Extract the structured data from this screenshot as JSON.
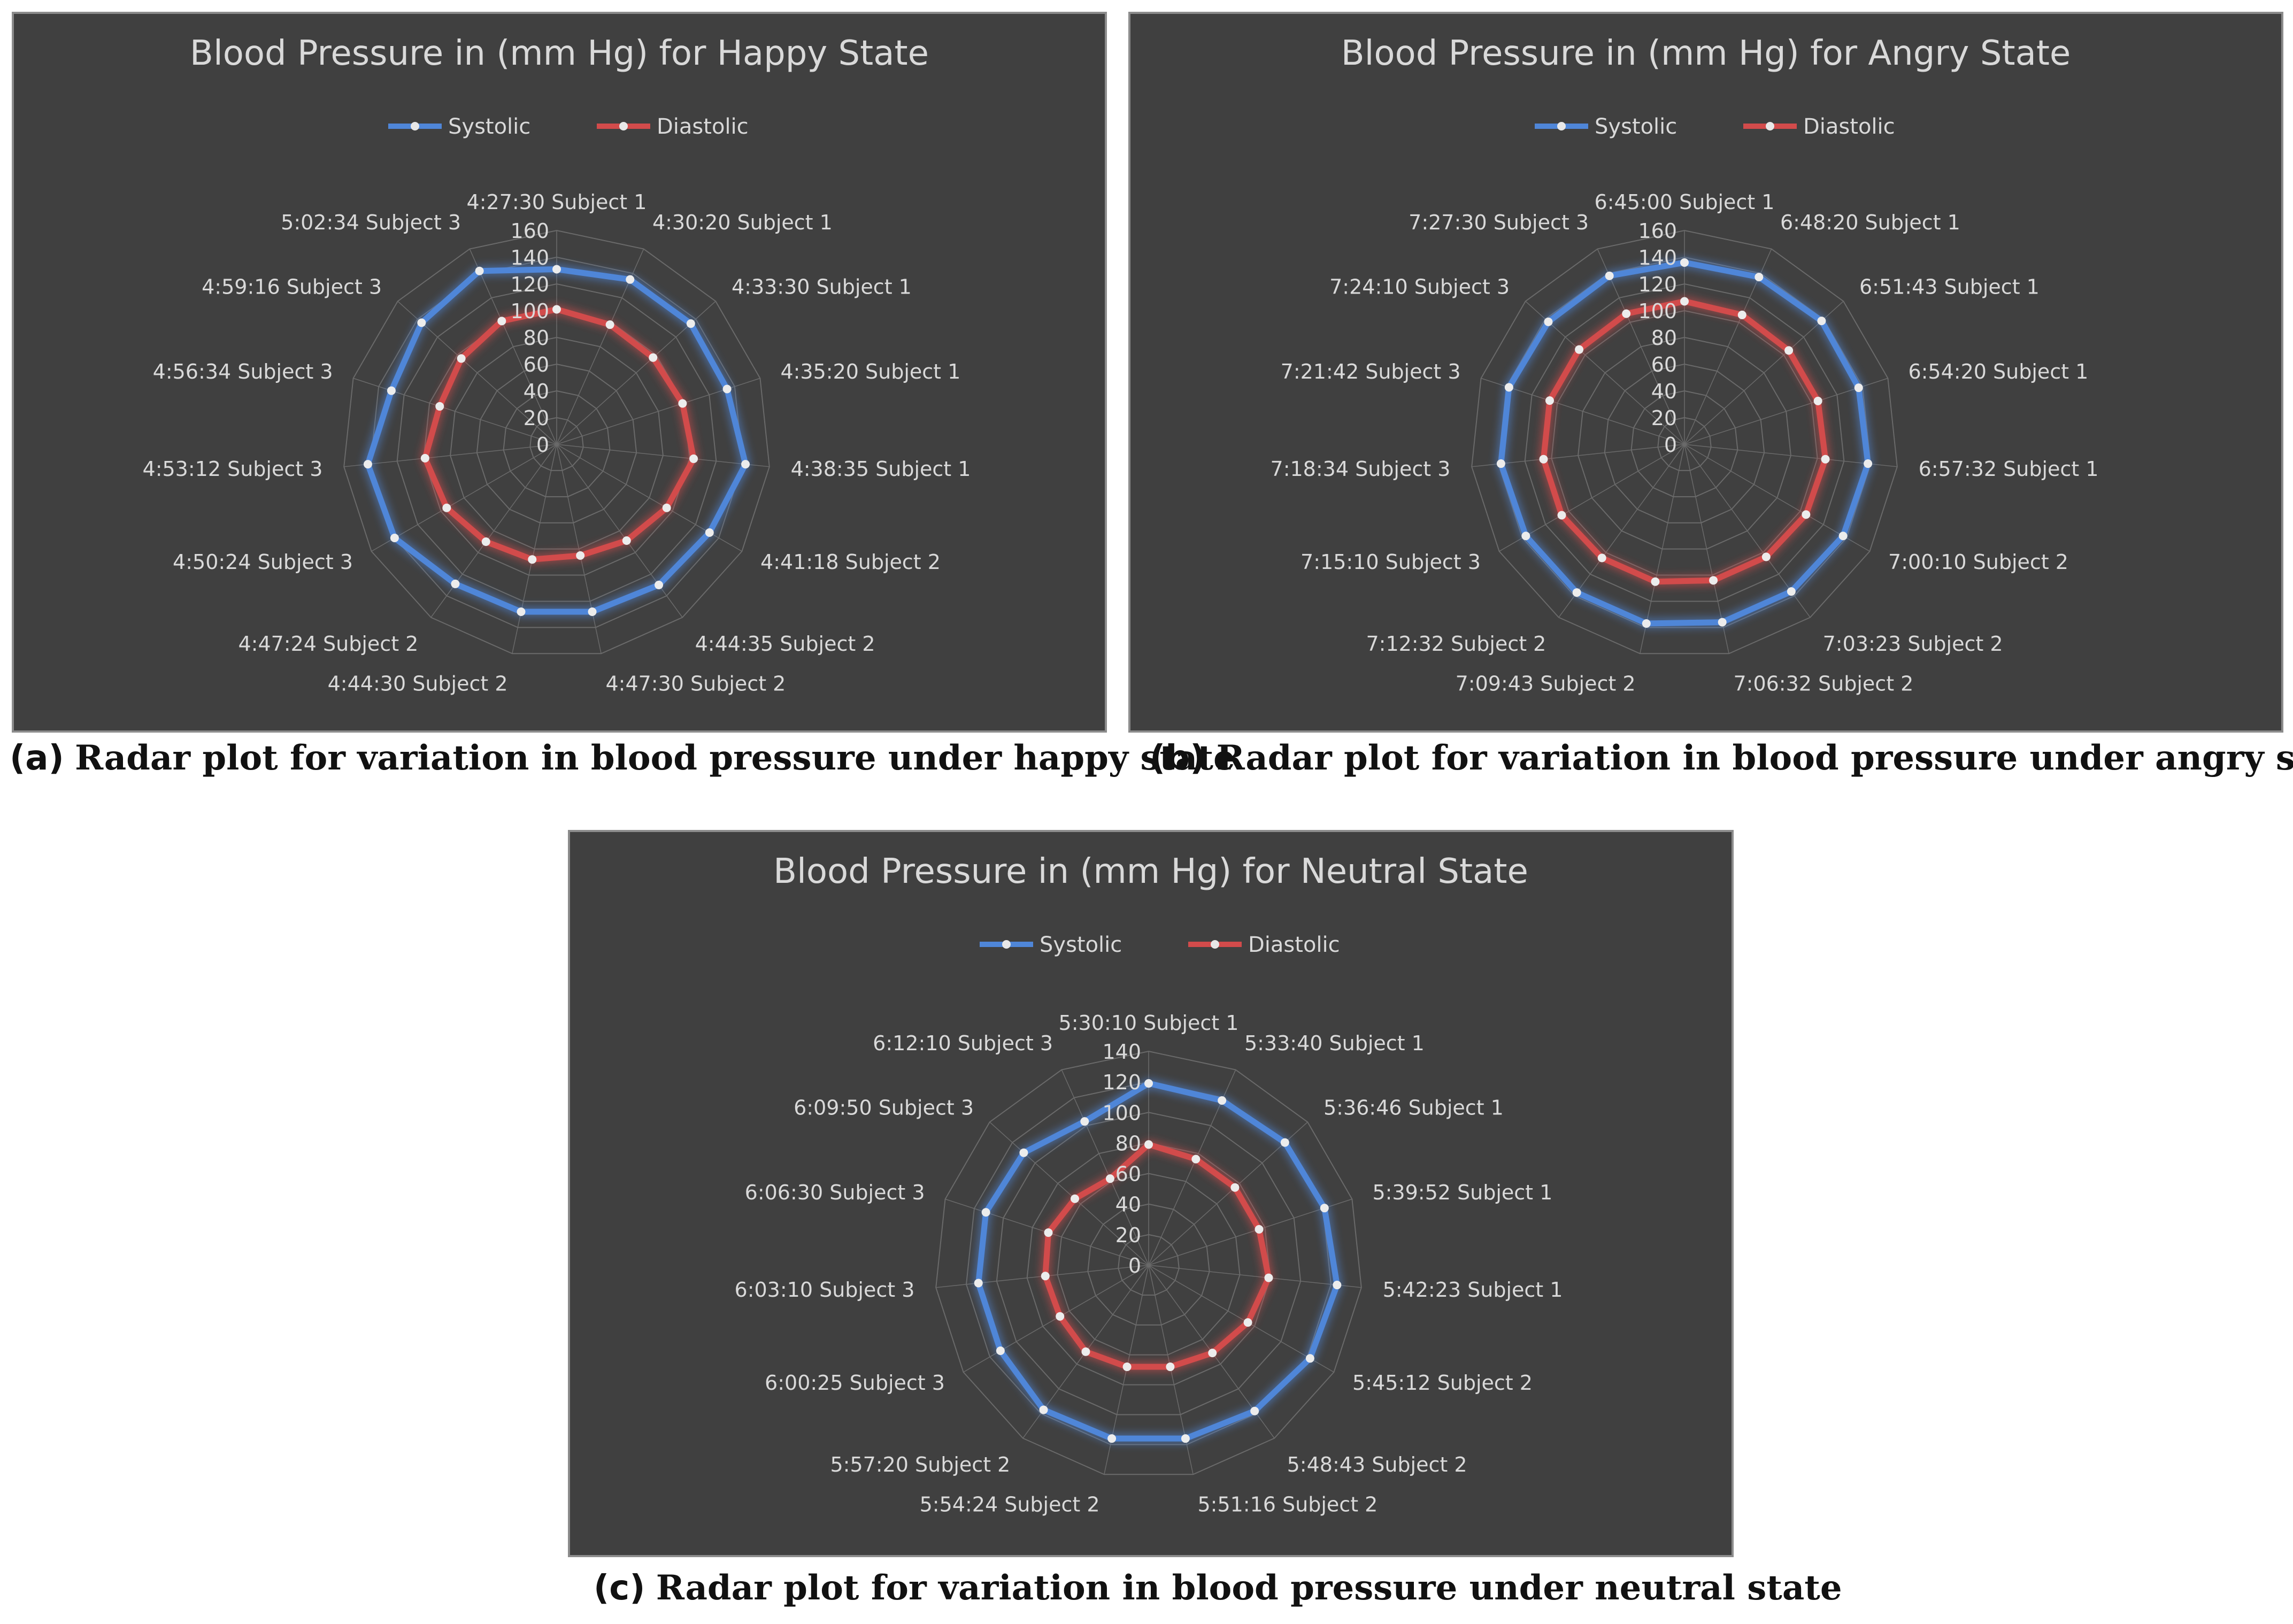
{
  "colors": {
    "systolic": "#4f86d8",
    "diastolic": "#d24b4b",
    "background": "#404040",
    "grid": "#6a6a6a",
    "text": "#d9d9d9"
  },
  "captions": [
    {
      "letter": "(a)",
      "text": "Radar plot for variation in blood pressure under happy state"
    },
    {
      "letter": "(b)",
      "text": "Radar plot for variation in blood pressure under angry state"
    },
    {
      "letter": "(c)",
      "text": "Radar plot for variation in blood pressure under neutral state"
    }
  ],
  "chart_data": [
    {
      "type": "radar",
      "title": "Blood Pressure in (mm Hg) for Happy State",
      "legend": [
        "Systolic",
        "Diastolic"
      ],
      "legend_position": "top",
      "axis_max": 160,
      "ticks": [
        "0",
        "20",
        "40",
        "60",
        "80",
        "100",
        "120",
        "140",
        "160"
      ],
      "categories": [
        "4:27:30 Subject 1",
        "4:30:20 Subject 1",
        "4:33:30 Subject 1",
        "4:35:20 Subject 1",
        "4:38:35 Subject 1",
        "4:41:18 Subject 2",
        "4:44:35 Subject 2",
        "4:47:30 Subject 2",
        "4:44:30 Subject 2",
        "4:47:24 Subject 2",
        "4:50:24 Subject 3",
        "4:53:12 Subject 3",
        "4:56:34 Subject 3",
        "4:59:16 Subject 3",
        "5:02:34 Subject 3"
      ],
      "series": [
        {
          "name": "Systolic",
          "values": [
            131,
            135,
            135,
            134,
            142,
            132,
            130,
            128,
            128,
            129,
            140,
            142,
            130,
            136,
            142
          ]
        },
        {
          "name": "Diastolic",
          "values": [
            101,
            98,
            97,
            99,
            103,
            95,
            89,
            85,
            88,
            90,
            95,
            99,
            92,
            96,
            101
          ]
        }
      ]
    },
    {
      "type": "radar",
      "title": "Blood Pressure in (mm Hg) for Angry State",
      "legend": [
        "Systolic",
        "Diastolic"
      ],
      "legend_position": "top",
      "axis_max": 160,
      "ticks": [
        "0",
        "20",
        "40",
        "60",
        "80",
        "100",
        "120",
        "140",
        "160"
      ],
      "categories": [
        "6:45:00 Subject 1",
        "6:48:20 Subject 1",
        "6:51:43 Subject 1",
        "6:54:20 Subject 1",
        "6:57:32 Subject 1",
        "7:00:10 Subject 2",
        "7:03:23 Subject 2",
        "7:06:32 Subject 2",
        "7:09:43 Subject 2",
        "7:12:32 Subject 2",
        "7:15:10 Subject 3",
        "7:18:34 Subject 3",
        "7:21:42 Subject 3",
        "7:24:10 Subject 3",
        "7:27:30 Subject 3"
      ],
      "series": [
        {
          "name": "Systolic",
          "values": [
            136,
            137,
            138,
            137,
            138,
            137,
            136,
            136,
            137,
            137,
            137,
            138,
            138,
            137,
            138
          ]
        },
        {
          "name": "Diastolic",
          "values": [
            107,
            106,
            105,
            105,
            106,
            105,
            104,
            104,
            105,
            105,
            106,
            106,
            106,
            106,
            107
          ]
        }
      ]
    },
    {
      "type": "radar",
      "title": "Blood Pressure in (mm Hg) for Neutral State",
      "legend": [
        "Systolic",
        "Diastolic"
      ],
      "legend_position": "top",
      "axis_max": 140,
      "ticks": [
        "0",
        "20",
        "40",
        "60",
        "80",
        "100",
        "120",
        "140"
      ],
      "categories": [
        "5:30:10 Subject 1",
        "5:33:40 Subject 1",
        "5:36:46 Subject 1",
        "5:39:52 Subject 1",
        "5:42:23 Subject 1",
        "5:45:12 Subject 2",
        "5:48:43 Subject 2",
        "5:51:16 Subject 2",
        "5:54:24 Subject 2",
        "5:57:20 Subject 2",
        "6:00:25 Subject 3",
        "6:03:10 Subject 3",
        "6:06:30 Subject 3",
        "6:09:50 Subject 3",
        "6:12:10 Subject 3"
      ],
      "series": [
        {
          "name": "Systolic",
          "values": [
            119,
            118,
            120,
            121,
            124,
            122,
            118,
            116,
            116,
            117,
            112,
            112,
            112,
            110,
            103
          ]
        },
        {
          "name": "Diastolic",
          "values": [
            79,
            76,
            76,
            76,
            79,
            75,
            71,
            68,
            68,
            70,
            67,
            68,
            69,
            65,
            62
          ]
        }
      ]
    }
  ]
}
